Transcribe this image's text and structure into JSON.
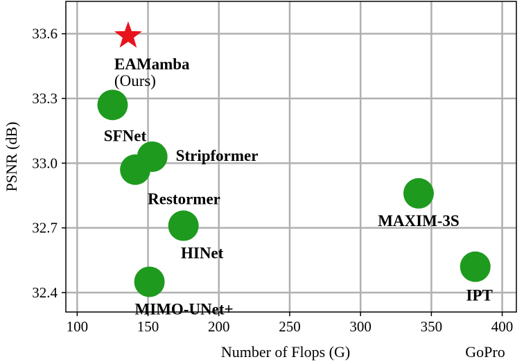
{
  "chart_data": {
    "type": "scatter",
    "title": "",
    "xlabel": "Number of Flops (G)",
    "ylabel": "PSNR (dB)",
    "caption": "GoPro",
    "xlim": [
      92,
      410
    ],
    "ylim": [
      32.31,
      33.75
    ],
    "xticks": [
      100,
      150,
      200,
      250,
      300,
      350,
      400
    ],
    "yticks": [
      32.4,
      32.7,
      33.0,
      33.3,
      33.6
    ],
    "ytick_labels": [
      "32.4",
      "32.7",
      "33.0",
      "33.3",
      "33.6"
    ],
    "grid": true,
    "colors": {
      "point": "#1e9a1e",
      "highlight": "#e8141c"
    },
    "points": [
      {
        "name": "EAMamba",
        "sublabel": "(Ours)",
        "x": 136,
        "y": 33.59,
        "marker": "star"
      },
      {
        "name": "SFNet",
        "sublabel": "",
        "x": 125,
        "y": 33.27,
        "marker": "circle"
      },
      {
        "name": "Stripformer",
        "sublabel": "",
        "x": 153,
        "y": 33.03,
        "marker": "circle"
      },
      {
        "name": "Restormer",
        "sublabel": "",
        "x": 141,
        "y": 32.97,
        "marker": "circle"
      },
      {
        "name": "HINet",
        "sublabel": "",
        "x": 175,
        "y": 32.71,
        "marker": "circle"
      },
      {
        "name": "MIMO-UNet+",
        "sublabel": "",
        "x": 151,
        "y": 32.45,
        "marker": "circle"
      },
      {
        "name": "MAXIM-3S",
        "sublabel": "",
        "x": 341,
        "y": 32.86,
        "marker": "circle"
      },
      {
        "name": "IPT",
        "sublabel": "",
        "x": 381,
        "y": 32.52,
        "marker": "circle"
      }
    ]
  }
}
